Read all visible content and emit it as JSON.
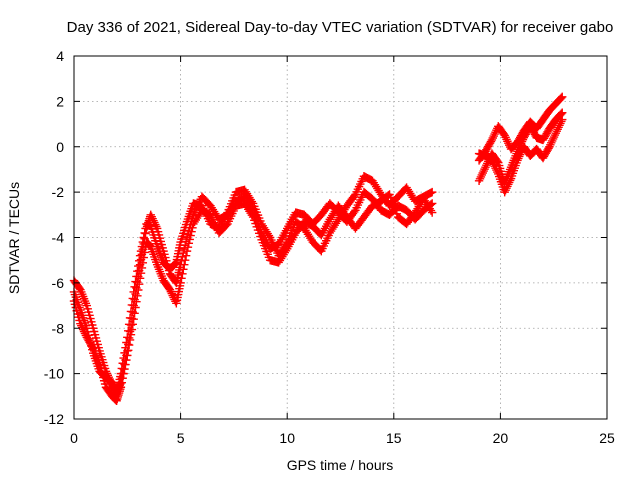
{
  "chart_data": {
    "type": "scatter",
    "title": "Day 336 of 2021, Sidereal Day-to-day VTEC variation (SDTVAR) for receiver gabo",
    "xlabel": "GPS time / hours",
    "ylabel": "SDTVAR / TECUs",
    "xlim": [
      0,
      25
    ],
    "ylim": [
      -12,
      4
    ],
    "xticks": [
      0,
      5,
      10,
      15,
      20,
      25
    ],
    "yticks": [
      -12,
      -10,
      -8,
      -6,
      -4,
      -2,
      0,
      2,
      4
    ],
    "grid": true,
    "marker": "plus",
    "color": "#ff0000",
    "series": [
      {
        "points": [
          [
            0.0,
            -5.9
          ],
          [
            0.3,
            -6.3
          ],
          [
            0.6,
            -7.0
          ],
          [
            0.9,
            -8.0
          ],
          [
            1.2,
            -9.0
          ],
          [
            1.5,
            -9.9
          ],
          [
            1.8,
            -10.5
          ],
          [
            2.0,
            -10.8
          ],
          [
            2.2,
            -10.4
          ],
          [
            2.5,
            -9.0
          ],
          [
            2.8,
            -7.0
          ],
          [
            3.1,
            -5.2
          ],
          [
            3.4,
            -3.6
          ],
          [
            3.6,
            -3.0
          ],
          [
            3.9,
            -3.6
          ],
          [
            4.2,
            -4.6
          ],
          [
            4.5,
            -5.6
          ],
          [
            4.8,
            -6.0
          ],
          [
            5.0,
            -5.2
          ],
          [
            5.3,
            -4.0
          ],
          [
            5.6,
            -3.0
          ],
          [
            6.0,
            -2.2
          ],
          [
            6.4,
            -2.6
          ],
          [
            6.8,
            -3.2
          ],
          [
            7.2,
            -3.0
          ],
          [
            7.6,
            -2.4
          ],
          [
            8.0,
            -2.2
          ],
          [
            8.4,
            -2.8
          ],
          [
            8.8,
            -3.8
          ],
          [
            9.2,
            -4.5
          ],
          [
            9.6,
            -4.3
          ],
          [
            10.0,
            -3.6
          ],
          [
            10.4,
            -2.9
          ],
          [
            10.8,
            -3.0
          ],
          [
            11.2,
            -3.4
          ],
          [
            11.6,
            -3.0
          ],
          [
            12.0,
            -2.5
          ],
          [
            12.4,
            -2.9
          ],
          [
            12.8,
            -3.3
          ],
          [
            13.2,
            -2.8
          ],
          [
            13.6,
            -2.0
          ],
          [
            14.0,
            -2.3
          ],
          [
            14.4,
            -2.8
          ],
          [
            14.8,
            -3.0
          ],
          [
            15.2,
            -2.6
          ],
          [
            15.6,
            -2.8
          ],
          [
            16.0,
            -3.2
          ],
          [
            16.4,
            -2.8
          ],
          [
            16.8,
            -2.5
          ]
        ]
      },
      {
        "points": [
          [
            0.0,
            -6.4
          ],
          [
            0.3,
            -7.2
          ],
          [
            0.6,
            -8.0
          ],
          [
            0.9,
            -9.1
          ],
          [
            1.2,
            -9.9
          ],
          [
            1.5,
            -10.2
          ],
          [
            1.8,
            -10.4
          ],
          [
            2.0,
            -10.9
          ],
          [
            2.2,
            -10.0
          ],
          [
            2.5,
            -8.4
          ],
          [
            2.8,
            -6.4
          ],
          [
            3.1,
            -4.8
          ],
          [
            3.4,
            -3.4
          ],
          [
            3.6,
            -3.5
          ],
          [
            3.9,
            -4.4
          ],
          [
            4.2,
            -5.1
          ],
          [
            4.5,
            -5.4
          ],
          [
            4.8,
            -5.1
          ],
          [
            5.0,
            -4.2
          ],
          [
            5.3,
            -3.3
          ],
          [
            5.6,
            -2.5
          ],
          [
            6.0,
            -2.6
          ],
          [
            6.4,
            -3.4
          ],
          [
            6.8,
            -3.6
          ],
          [
            7.2,
            -2.9
          ],
          [
            7.6,
            -2.0
          ],
          [
            8.0,
            -1.9
          ],
          [
            8.4,
            -2.5
          ],
          [
            8.8,
            -3.4
          ],
          [
            9.2,
            -4.0
          ],
          [
            9.6,
            -4.8
          ],
          [
            10.0,
            -4.2
          ],
          [
            10.4,
            -3.3
          ],
          [
            10.8,
            -3.6
          ],
          [
            11.2,
            -4.2
          ],
          [
            11.6,
            -4.6
          ],
          [
            12.0,
            -3.8
          ],
          [
            12.4,
            -3.2
          ],
          [
            12.8,
            -2.6
          ],
          [
            13.2,
            -2.1
          ],
          [
            13.6,
            -1.3
          ],
          [
            14.0,
            -1.5
          ],
          [
            14.4,
            -2.1
          ],
          [
            14.8,
            -2.6
          ],
          [
            15.2,
            -2.2
          ],
          [
            15.6,
            -1.8
          ],
          [
            16.0,
            -2.4
          ],
          [
            16.4,
            -2.2
          ],
          [
            16.8,
            -2.0
          ]
        ]
      },
      {
        "points": [
          [
            0.0,
            -6.8
          ],
          [
            0.3,
            -7.8
          ],
          [
            0.6,
            -8.4
          ],
          [
            0.9,
            -8.9
          ],
          [
            1.2,
            -9.6
          ],
          [
            1.5,
            -10.6
          ],
          [
            1.8,
            -11.0
          ],
          [
            2.0,
            -11.2
          ],
          [
            2.2,
            -10.6
          ],
          [
            2.5,
            -9.2
          ],
          [
            2.8,
            -7.6
          ],
          [
            3.1,
            -5.8
          ],
          [
            3.4,
            -4.2
          ],
          [
            3.6,
            -4.4
          ],
          [
            3.9,
            -5.2
          ],
          [
            4.2,
            -5.9
          ],
          [
            4.5,
            -6.3
          ],
          [
            4.8,
            -6.9
          ],
          [
            5.0,
            -6.0
          ],
          [
            5.3,
            -4.6
          ],
          [
            5.6,
            -3.4
          ],
          [
            6.0,
            -2.8
          ],
          [
            6.4,
            -3.0
          ],
          [
            6.8,
            -3.8
          ],
          [
            7.2,
            -3.4
          ],
          [
            7.6,
            -2.6
          ],
          [
            8.0,
            -2.5
          ],
          [
            8.4,
            -3.1
          ],
          [
            8.8,
            -4.1
          ],
          [
            9.2,
            -5.0
          ],
          [
            9.6,
            -5.1
          ],
          [
            10.0,
            -4.5
          ],
          [
            10.4,
            -3.8
          ],
          [
            10.8,
            -3.3
          ],
          [
            11.2,
            -3.5
          ],
          [
            11.6,
            -3.9
          ],
          [
            12.0,
            -3.2
          ],
          [
            12.4,
            -2.6
          ],
          [
            12.8,
            -3.1
          ],
          [
            13.2,
            -3.6
          ],
          [
            13.6,
            -3.1
          ],
          [
            14.0,
            -2.6
          ],
          [
            14.4,
            -2.4
          ],
          [
            14.8,
            -2.1
          ],
          [
            15.2,
            -3.1
          ],
          [
            15.6,
            -3.4
          ],
          [
            16.0,
            -2.9
          ],
          [
            16.4,
            -2.3
          ],
          [
            16.8,
            -2.9
          ]
        ]
      },
      {
        "points": [
          [
            19.0,
            -0.6
          ],
          [
            19.3,
            -0.2
          ],
          [
            19.6,
            0.3
          ],
          [
            19.9,
            0.9
          ],
          [
            20.2,
            0.5
          ],
          [
            20.5,
            -0.1
          ],
          [
            20.8,
            0.2
          ],
          [
            21.1,
            0.7
          ],
          [
            21.4,
            1.1
          ],
          [
            21.7,
            0.8
          ],
          [
            22.0,
            1.2
          ],
          [
            22.3,
            1.6
          ],
          [
            22.6,
            1.9
          ],
          [
            22.9,
            2.2
          ]
        ]
      },
      {
        "points": [
          [
            19.0,
            -1.5
          ],
          [
            19.3,
            -0.9
          ],
          [
            19.6,
            -0.3
          ],
          [
            19.9,
            -0.7
          ],
          [
            20.2,
            -1.6
          ],
          [
            20.5,
            -0.9
          ],
          [
            20.8,
            -0.2
          ],
          [
            21.1,
            0.4
          ],
          [
            21.4,
            0.9
          ],
          [
            21.7,
            0.4
          ],
          [
            22.0,
            0.3
          ],
          [
            22.3,
            0.8
          ],
          [
            22.6,
            1.2
          ],
          [
            22.9,
            1.5
          ]
        ]
      },
      {
        "points": [
          [
            19.0,
            -0.3
          ],
          [
            19.3,
            -0.4
          ],
          [
            19.6,
            -0.6
          ],
          [
            19.9,
            -1.2
          ],
          [
            20.2,
            -2.0
          ],
          [
            20.5,
            -1.4
          ],
          [
            20.8,
            -0.6
          ],
          [
            21.1,
            0.0
          ],
          [
            21.4,
            -0.4
          ],
          [
            21.7,
            -0.1
          ],
          [
            22.0,
            -0.5
          ],
          [
            22.3,
            0.0
          ],
          [
            22.6,
            0.6
          ],
          [
            22.9,
            1.2
          ]
        ]
      }
    ]
  }
}
